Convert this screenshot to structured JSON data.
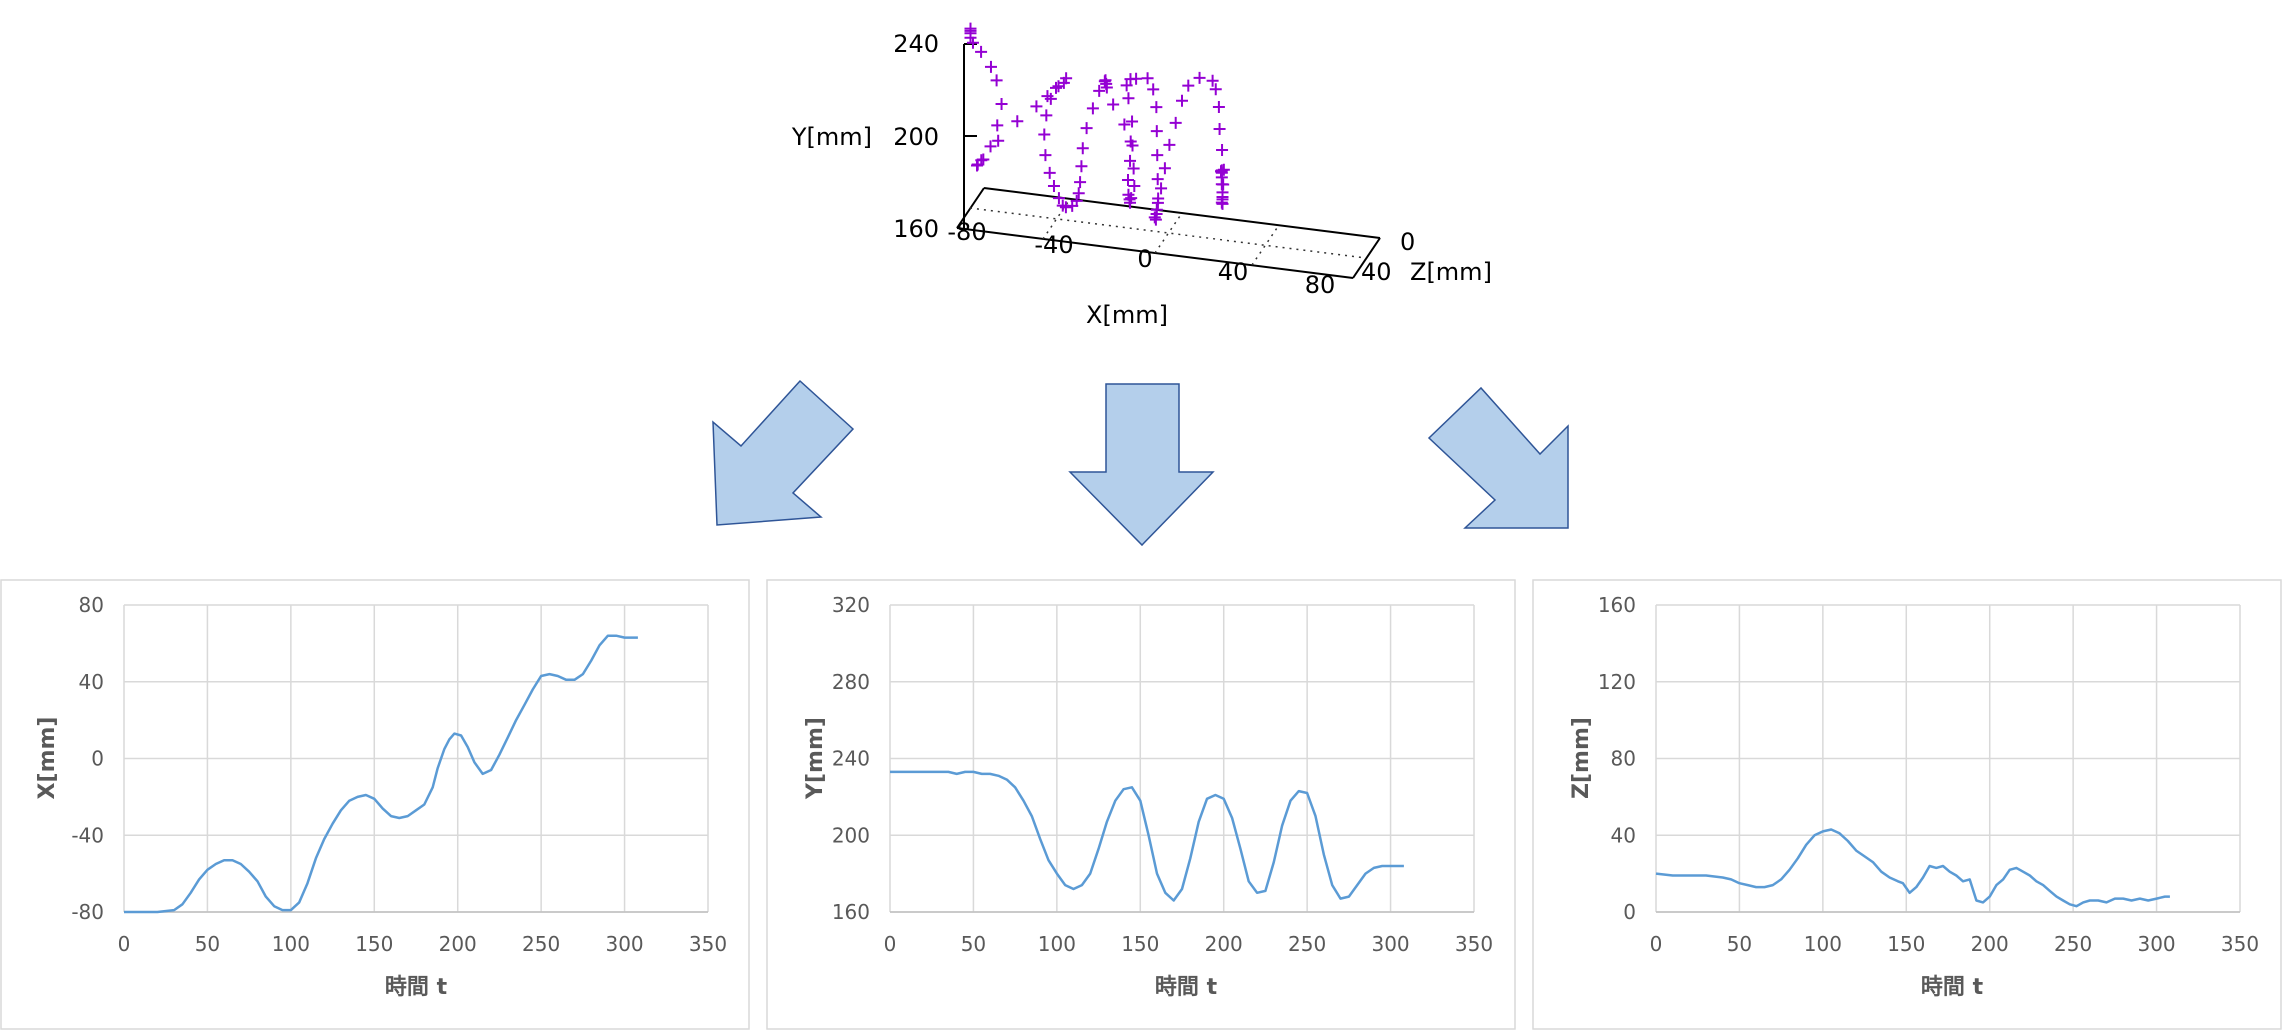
{
  "colors": {
    "trajectory": "#9400D3",
    "line": "#5B9BD5",
    "arrow_fill": "#B4CFEB",
    "arrow_stroke": "#2F5597",
    "grid": "#D9D9D9"
  },
  "chart_data": [
    {
      "type": "scatter",
      "projection": "3d",
      "marker": "+",
      "xlabel": "X[mm]",
      "ylabel": "Y[mm]",
      "zlabel": "Z[mm]",
      "xlim": [
        -80,
        80
      ],
      "ylim": [
        160,
        240
      ],
      "zlim": [
        0,
        40
      ],
      "x_ticks": [
        "-80",
        "-40",
        "0",
        "40",
        "80"
      ],
      "y_ticks": [
        "160",
        "200",
        "240"
      ],
      "z_ticks": [
        "0",
        "40"
      ],
      "x": [
        -80,
        -80,
        -80,
        -80,
        -79,
        -76,
        -72,
        -70,
        -68,
        -70,
        -73,
        -77,
        -79,
        -79,
        -77,
        -71,
        -63,
        -55,
        -50,
        -46,
        -42,
        -40,
        -42,
        -44,
        -45,
        -45,
        -44,
        -42,
        -40,
        -38,
        -37,
        -36,
        -34,
        -33,
        -33,
        -33,
        -33,
        -33,
        -32,
        -30,
        -28,
        -26,
        -26,
        -26,
        -26,
        -24,
        -20,
        -18,
        -18,
        -18,
        -17,
        -16,
        -15,
        -14,
        -13,
        -13,
        -14,
        -15,
        -17,
        -18,
        -17,
        -15,
        -12,
        -10,
        -9,
        -8,
        -7,
        -6,
        -5,
        -5,
        -5,
        -4,
        -4,
        -4,
        -3,
        -2,
        -1,
        1,
        3,
        5,
        9,
        14,
        15,
        16,
        16,
        17,
        18,
        18,
        18,
        18,
        18,
        18,
        18,
        18,
        18,
        18,
        18,
        18,
        18,
        18,
        18
      ],
      "y": [
        238,
        237,
        236,
        234,
        232,
        228,
        222,
        216,
        206,
        196,
        186,
        179,
        176,
        176,
        178,
        187,
        197,
        205,
        211,
        216,
        220,
        224,
        222,
        218,
        212,
        205,
        197,
        190,
        185,
        180,
        176,
        175,
        175,
        176,
        178,
        182,
        188,
        195,
        203,
        211,
        218,
        222,
        222,
        220,
        218,
        210,
        201,
        193,
        185,
        178,
        173,
        172,
        172,
        175,
        180,
        188,
        197,
        206,
        215,
        220,
        222,
        222,
        220,
        215,
        207,
        198,
        189,
        180,
        173,
        169,
        167,
        167,
        169,
        173,
        179,
        187,
        196,
        205,
        214,
        220,
        223,
        222,
        218,
        210,
        200,
        191,
        183,
        177,
        172,
        170,
        169,
        171,
        174,
        178,
        181,
        183,
        184,
        184,
        184,
        184,
        184
      ],
      "z": [
        20,
        20,
        20,
        20,
        20,
        19,
        19,
        18,
        18,
        17,
        16,
        15,
        14,
        13,
        12,
        12,
        13,
        14,
        16,
        18,
        21,
        25,
        29,
        33,
        36,
        39,
        41,
        42,
        43,
        43,
        41,
        40,
        38,
        35,
        32,
        30,
        28,
        26,
        24,
        22,
        20,
        19,
        18,
        17,
        16,
        14,
        12,
        10,
        11,
        14,
        17,
        19,
        22,
        24,
        23,
        24,
        22,
        19,
        17,
        16,
        14,
        13,
        7,
        6,
        5,
        8,
        11,
        14,
        17,
        19,
        22,
        24,
        23,
        21,
        20,
        18,
        15,
        13,
        11,
        9,
        7,
        6,
        5,
        4,
        3,
        3,
        4,
        5,
        6,
        7,
        6,
        6,
        6,
        7,
        7,
        7,
        7,
        8,
        8,
        8,
        8
      ]
    },
    {
      "type": "line",
      "xlabel": "時間 t",
      "ylabel": "X[mm]",
      "xlim": [
        0,
        350
      ],
      "ylim": [
        -80,
        80
      ],
      "x_ticks": [
        "0",
        "50",
        "100",
        "150",
        "200",
        "250",
        "300",
        "350"
      ],
      "y_ticks": [
        "-80",
        "-40",
        "0",
        "40",
        "80"
      ],
      "grid": true,
      "series": [
        {
          "x": [
            0,
            10,
            20,
            30,
            35,
            40,
            45,
            50,
            55,
            60,
            65,
            70,
            75,
            80,
            85,
            90,
            95,
            100,
            105,
            110,
            115,
            120,
            125,
            130,
            135,
            140,
            145,
            150,
            155,
            160,
            165,
            170,
            175,
            180,
            185,
            188,
            192,
            195,
            198,
            202,
            206,
            210,
            215,
            220,
            225,
            230,
            235,
            240,
            245,
            250,
            255,
            260,
            265,
            270,
            275,
            280,
            285,
            290,
            295,
            300,
            305,
            308
          ],
          "y": [
            -80,
            -80,
            -80,
            -79,
            -76,
            -70,
            -63,
            -58,
            -55,
            -53,
            -53,
            -55,
            -59,
            -64,
            -72,
            -77,
            -79,
            -79,
            -75,
            -65,
            -52,
            -42,
            -34,
            -27,
            -22,
            -20,
            -19,
            -21,
            -26,
            -30,
            -31,
            -30,
            -27,
            -24,
            -15,
            -5,
            5,
            10,
            13,
            12,
            6,
            -2,
            -8,
            -6,
            2,
            11,
            20,
            28,
            36,
            43,
            44,
            43,
            41,
            41,
            44,
            51,
            59,
            64,
            64,
            63,
            63,
            63
          ]
        }
      ]
    },
    {
      "type": "line",
      "xlabel": "時間 t",
      "ylabel": "Y[mm]",
      "xlim": [
        0,
        350
      ],
      "ylim": [
        160,
        320
      ],
      "x_ticks": [
        "0",
        "50",
        "100",
        "150",
        "200",
        "250",
        "300",
        "350"
      ],
      "y_ticks": [
        "160",
        "200",
        "240",
        "280",
        "320"
      ],
      "grid": true,
      "series": [
        {
          "x": [
            0,
            10,
            20,
            30,
            35,
            40,
            45,
            50,
            55,
            60,
            65,
            70,
            75,
            80,
            85,
            90,
            95,
            100,
            105,
            110,
            115,
            120,
            125,
            130,
            135,
            140,
            145,
            150,
            155,
            160,
            165,
            170,
            175,
            180,
            185,
            190,
            195,
            200,
            205,
            210,
            215,
            220,
            225,
            230,
            235,
            240,
            245,
            250,
            255,
            260,
            265,
            270,
            275,
            280,
            285,
            290,
            295,
            300,
            305,
            308
          ],
          "y": [
            233,
            233,
            233,
            233,
            233,
            232,
            233,
            233,
            232,
            232,
            231,
            229,
            225,
            218,
            210,
            198,
            187,
            180,
            174,
            172,
            174,
            180,
            193,
            207,
            218,
            224,
            225,
            218,
            200,
            180,
            170,
            166,
            172,
            188,
            207,
            219,
            221,
            219,
            209,
            193,
            176,
            170,
            171,
            186,
            205,
            218,
            223,
            222,
            210,
            190,
            174,
            167,
            168,
            174,
            180,
            183,
            184,
            184,
            184,
            184
          ]
        }
      ]
    },
    {
      "type": "line",
      "xlabel": "時間 t",
      "ylabel": "Z[mm]",
      "xlim": [
        0,
        350
      ],
      "ylim": [
        0,
        160
      ],
      "x_ticks": [
        "0",
        "50",
        "100",
        "150",
        "200",
        "250",
        "300",
        "350"
      ],
      "y_ticks": [
        "0",
        "40",
        "80",
        "120",
        "160"
      ],
      "grid": true,
      "series": [
        {
          "x": [
            0,
            10,
            20,
            30,
            40,
            45,
            50,
            55,
            60,
            65,
            70,
            75,
            80,
            85,
            90,
            95,
            100,
            105,
            110,
            115,
            120,
            125,
            130,
            135,
            140,
            145,
            148,
            152,
            156,
            160,
            164,
            168,
            172,
            176,
            180,
            184,
            188,
            192,
            196,
            200,
            204,
            208,
            212,
            216,
            220,
            224,
            228,
            232,
            236,
            240,
            244,
            248,
            252,
            256,
            260,
            265,
            270,
            275,
            280,
            285,
            290,
            295,
            300,
            305,
            308
          ],
          "y": [
            20,
            19,
            19,
            19,
            18,
            17,
            15,
            14,
            13,
            13,
            14,
            17,
            22,
            28,
            35,
            40,
            42,
            43,
            41,
            37,
            32,
            29,
            26,
            21,
            18,
            16,
            15,
            10,
            13,
            18,
            24,
            23,
            24,
            21,
            19,
            16,
            17,
            6,
            5,
            8,
            14,
            17,
            22,
            23,
            21,
            19,
            16,
            14,
            11,
            8,
            6,
            4,
            3,
            5,
            6,
            6,
            5,
            7,
            7,
            6,
            7,
            6,
            7,
            8,
            8
          ]
        }
      ]
    }
  ]
}
